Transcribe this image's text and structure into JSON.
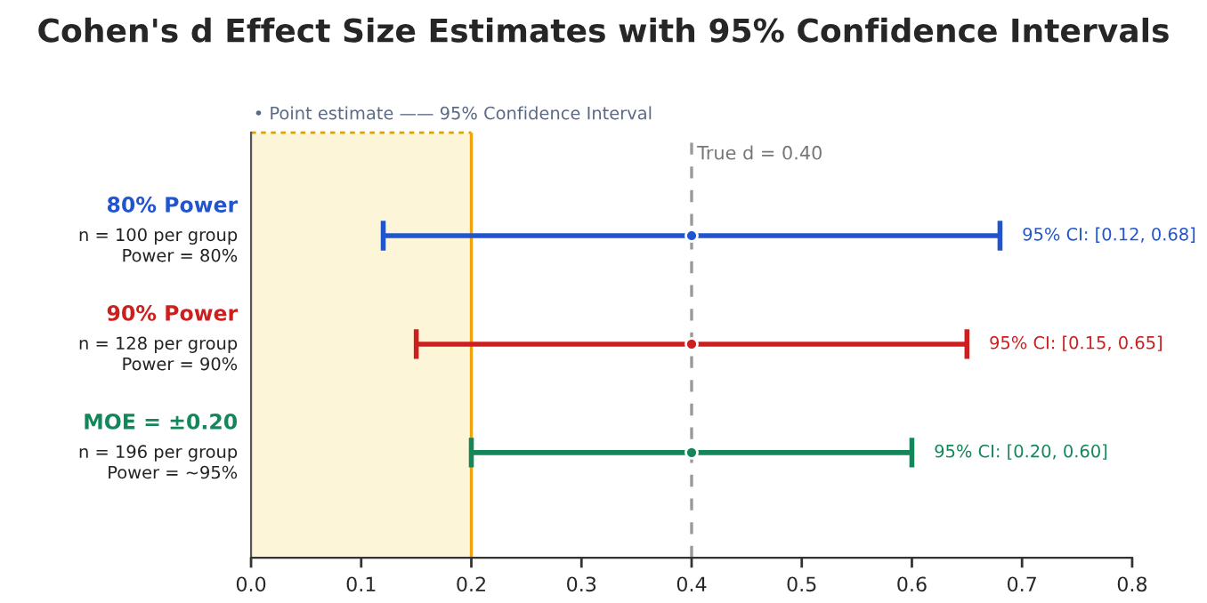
{
  "chart_data": {
    "type": "scatter",
    "orientation": "horizontal",
    "title": "Cohen's d Effect Size Estimates with 95% Confidence Intervals",
    "categories": [
      "80% Power\nn = 100 per group\nPower = 80%",
      "90% Power\nn = 128 per group\nPower = 90%",
      "MOE = ±0.20\nn = 196 per group\nPower = ~95%"
    ],
    "values": [
      0.4,
      0.4,
      0.4
    ],
    "errors": [
      [
        0.12,
        0.68
      ],
      [
        0.15,
        0.65
      ],
      [
        0.2,
        0.6
      ]
    ],
    "colors": [
      "#2155cd",
      "#cc1f1f",
      "#14875a"
    ],
    "xlim": [
      0,
      0.8
    ],
    "xticks": [
      {
        "value": 0,
        "label": "0.0"
      },
      0.1,
      0.2,
      0.3,
      0.4,
      0.5,
      0.6,
      0.7,
      0.8
    ],
    "ref_lines": [
      {
        "axis": "x",
        "value": 0.4,
        "label": "True d = 0.40",
        "color": "#999999",
        "line_style": "dashed"
      },
      {
        "axis": "x",
        "value": 0.2,
        "color": "#f0a30a",
        "line_style": "solid"
      }
    ],
    "bands": [
      {
        "axis": "x",
        "from": 0,
        "to": 0.2,
        "color": "#fdf5d8"
      }
    ],
    "annotations": [
      "• Point estimate —— 95% Confidence Interval",
      "95% CI: [0.12, 0.68]",
      "95% CI: [0.15, 0.65]",
      "95% CI: [0.20, 0.60]"
    ],
    "marker": "circle",
    "grid": false
  }
}
